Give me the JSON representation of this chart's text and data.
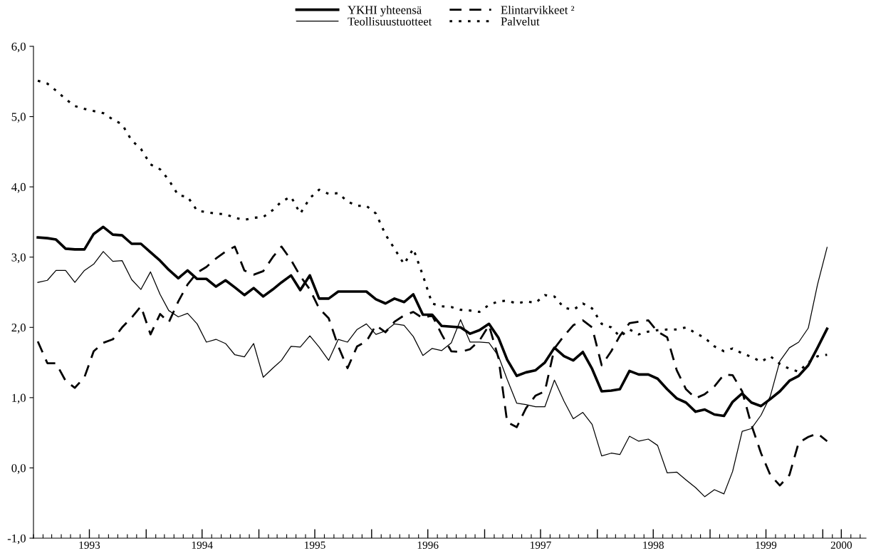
{
  "chart_data": {
    "type": "line",
    "x": [
      "1993-01-15",
      "1993-02-15",
      "1993-03-15",
      "1993-04-15",
      "1993-05-15",
      "1993-06-15",
      "1993-07-15",
      "1993-08-15",
      "1993-09-15",
      "1993-10-15",
      "1993-11-15",
      "1993-12-15",
      "1994-01-15",
      "1994-02-15",
      "1994-03-15",
      "1994-04-15",
      "1994-05-15",
      "1994-06-15",
      "1994-07-15",
      "1994-08-15",
      "1994-09-15",
      "1994-10-15",
      "1994-11-15",
      "1994-12-15",
      "1995-01-15",
      "1995-02-15",
      "1995-03-15",
      "1995-04-15",
      "1995-05-15",
      "1995-06-15",
      "1995-07-15",
      "1995-08-15",
      "1995-09-15",
      "1995-10-15",
      "1995-11-15",
      "1995-12-15",
      "1996-01-15",
      "1996-02-15",
      "1996-03-15",
      "1996-04-15",
      "1996-05-15",
      "1996-06-15",
      "1996-07-15",
      "1996-08-15",
      "1996-09-15",
      "1996-10-15",
      "1996-11-15",
      "1996-12-15",
      "1997-01-15",
      "1997-02-15",
      "1997-03-15",
      "1997-04-15",
      "1997-05-15",
      "1997-06-15",
      "1997-07-15",
      "1997-08-15",
      "1997-09-15",
      "1997-10-15",
      "1997-11-15",
      "1997-12-15",
      "1998-01-15",
      "1998-02-15",
      "1998-03-15",
      "1998-04-15",
      "1998-05-15",
      "1998-06-15",
      "1998-07-15",
      "1998-08-15",
      "1998-09-15",
      "1998-10-15",
      "1998-11-15",
      "1998-12-15",
      "1999-01-15",
      "1999-02-15",
      "1999-03-15",
      "1999-04-15",
      "1999-05-15",
      "1999-06-15",
      "1999-07-15",
      "1999-08-15",
      "1999-09-15",
      "1999-10-15",
      "1999-11-15",
      "1999-12-15",
      "2000-01-15"
    ],
    "xlim": [
      "1993-01-01",
      "2000-05-20"
    ],
    "xticks": [
      {
        "value": "1993-07-01",
        "label": "1993"
      },
      {
        "value": "1994-01-01",
        "label": null
      },
      {
        "value": "1994-07-01",
        "label": "1994"
      },
      {
        "value": "1995-01-01",
        "label": null
      },
      {
        "value": "1995-07-01",
        "label": "1995"
      },
      {
        "value": "1996-01-01",
        "label": null
      },
      {
        "value": "1996-07-01",
        "label": "1996"
      },
      {
        "value": "1997-01-01",
        "label": null
      },
      {
        "value": "1997-07-01",
        "label": "1997"
      },
      {
        "value": "1998-01-01",
        "label": null
      },
      {
        "value": "1998-07-01",
        "label": "1998"
      },
      {
        "value": "1999-01-01",
        "label": null
      },
      {
        "value": "1999-07-01",
        "label": "1999"
      },
      {
        "value": "2000-01-01",
        "label": null
      },
      {
        "value": "2000-03-01",
        "label": "2000"
      }
    ],
    "ylim": [
      -1,
      6
    ],
    "yticks": [
      {
        "value": -1,
        "label": "-1,0"
      },
      {
        "value": 0,
        "label": "0,0"
      },
      {
        "value": 1,
        "label": "1,0"
      },
      {
        "value": 2,
        "label": "2,0"
      },
      {
        "value": 3,
        "label": "3,0"
      },
      {
        "value": 4,
        "label": "4,0"
      },
      {
        "value": 5,
        "label": "5,0"
      },
      {
        "value": 6,
        "label": "6,0"
      }
    ],
    "grid": false,
    "legend": "top",
    "marker": "none",
    "series": [
      {
        "name": "YKHI yhteensä",
        "color": "#000000",
        "line_style": "solid",
        "values": [
          3.28,
          3.27,
          3.25,
          3.12,
          3.11,
          3.11,
          3.33,
          3.43,
          3.32,
          3.31,
          3.19,
          3.19,
          3.07,
          2.95,
          2.82,
          2.7,
          2.81,
          2.69,
          2.69,
          2.58,
          2.67,
          2.57,
          2.46,
          2.56,
          2.44,
          2.54,
          2.64,
          2.74,
          2.53,
          2.74,
          2.41,
          2.41,
          2.51,
          2.51,
          2.51,
          2.51,
          2.4,
          2.34,
          2.41,
          2.36,
          2.47,
          2.18,
          2.18,
          2.02,
          2.01,
          2.0,
          1.91,
          1.96,
          2.05,
          1.85,
          1.54,
          1.31,
          1.36,
          1.39,
          1.5,
          1.71,
          1.59,
          1.53,
          1.65,
          1.41,
          1.09,
          1.1,
          1.12,
          1.38,
          1.33,
          1.33,
          1.27,
          1.12,
          0.99,
          0.93,
          0.8,
          0.83,
          0.76,
          0.74,
          0.94,
          1.06,
          0.93,
          0.88,
          0.98,
          1.09,
          1.24,
          1.31,
          1.46,
          1.71,
          1.98
        ]
      },
      {
        "name": "Teollisuustuotteet",
        "color": "#000000",
        "line_style": "solid",
        "values": [
          2.64,
          2.67,
          2.81,
          2.81,
          2.64,
          2.81,
          2.9,
          3.08,
          2.94,
          2.95,
          2.68,
          2.54,
          2.79,
          2.47,
          2.24,
          2.15,
          2.2,
          2.05,
          1.79,
          1.83,
          1.77,
          1.61,
          1.58,
          1.77,
          1.29,
          1.42,
          1.53,
          1.73,
          1.72,
          1.88,
          1.72,
          1.53,
          1.83,
          1.79,
          1.97,
          2.05,
          1.9,
          1.95,
          2.05,
          2.03,
          1.87,
          1.6,
          1.7,
          1.67,
          1.78,
          2.11,
          1.79,
          1.79,
          1.78,
          1.59,
          1.26,
          0.92,
          0.9,
          0.87,
          0.87,
          1.25,
          0.95,
          0.7,
          0.79,
          0.62,
          0.17,
          0.21,
          0.19,
          0.45,
          0.38,
          0.41,
          0.32,
          -0.07,
          -0.06,
          -0.17,
          -0.28,
          -0.41,
          -0.31,
          -0.37,
          -0.05,
          0.52,
          0.56,
          0.75,
          1.02,
          1.52,
          1.71,
          1.79,
          1.99,
          2.61,
          3.14
        ]
      },
      {
        "name": "Elintarvikkeet ²",
        "color": "#000000",
        "line_style": "dashed",
        "values": [
          1.8,
          1.49,
          1.49,
          1.24,
          1.14,
          1.29,
          1.66,
          1.78,
          1.83,
          2.0,
          2.14,
          2.3,
          1.9,
          2.19,
          2.07,
          2.37,
          2.61,
          2.78,
          2.86,
          2.98,
          3.08,
          3.15,
          2.81,
          2.75,
          2.8,
          3.0,
          3.15,
          2.96,
          2.73,
          2.54,
          2.27,
          2.13,
          1.73,
          1.42,
          1.73,
          1.8,
          2.03,
          1.93,
          2.08,
          2.17,
          2.22,
          2.13,
          2.17,
          1.9,
          1.66,
          1.65,
          1.69,
          1.81,
          2.03,
          1.56,
          0.65,
          0.58,
          0.85,
          1.03,
          1.09,
          1.7,
          1.88,
          2.03,
          2.1,
          2.0,
          1.46,
          1.66,
          1.88,
          2.06,
          2.08,
          2.1,
          1.94,
          1.86,
          1.39,
          1.12,
          0.99,
          1.05,
          1.16,
          1.33,
          1.32,
          1.09,
          0.61,
          0.21,
          -0.1,
          -0.25,
          -0.1,
          0.36,
          0.44,
          0.49,
          0.38
        ]
      },
      {
        "name": "Palvelut",
        "color": "#000000",
        "line_style": "dotted",
        "values": [
          5.51,
          5.47,
          5.37,
          5.25,
          5.15,
          5.11,
          5.08,
          5.05,
          4.96,
          4.89,
          4.66,
          4.54,
          4.32,
          4.25,
          4.1,
          3.88,
          3.86,
          3.66,
          3.64,
          3.62,
          3.61,
          3.56,
          3.53,
          3.56,
          3.57,
          3.67,
          3.79,
          3.86,
          3.62,
          3.84,
          3.96,
          3.9,
          3.91,
          3.79,
          3.73,
          3.73,
          3.62,
          3.32,
          3.12,
          2.9,
          3.12,
          2.74,
          2.34,
          2.3,
          2.29,
          2.25,
          2.24,
          2.22,
          2.32,
          2.37,
          2.38,
          2.34,
          2.37,
          2.35,
          2.46,
          2.44,
          2.28,
          2.25,
          2.34,
          2.27,
          2.05,
          2.0,
          1.87,
          1.97,
          1.9,
          1.94,
          1.96,
          1.97,
          1.97,
          2.0,
          1.92,
          1.85,
          1.73,
          1.66,
          1.7,
          1.63,
          1.58,
          1.51,
          1.59,
          1.48,
          1.41,
          1.37,
          1.5,
          1.59,
          1.61
        ]
      }
    ]
  }
}
